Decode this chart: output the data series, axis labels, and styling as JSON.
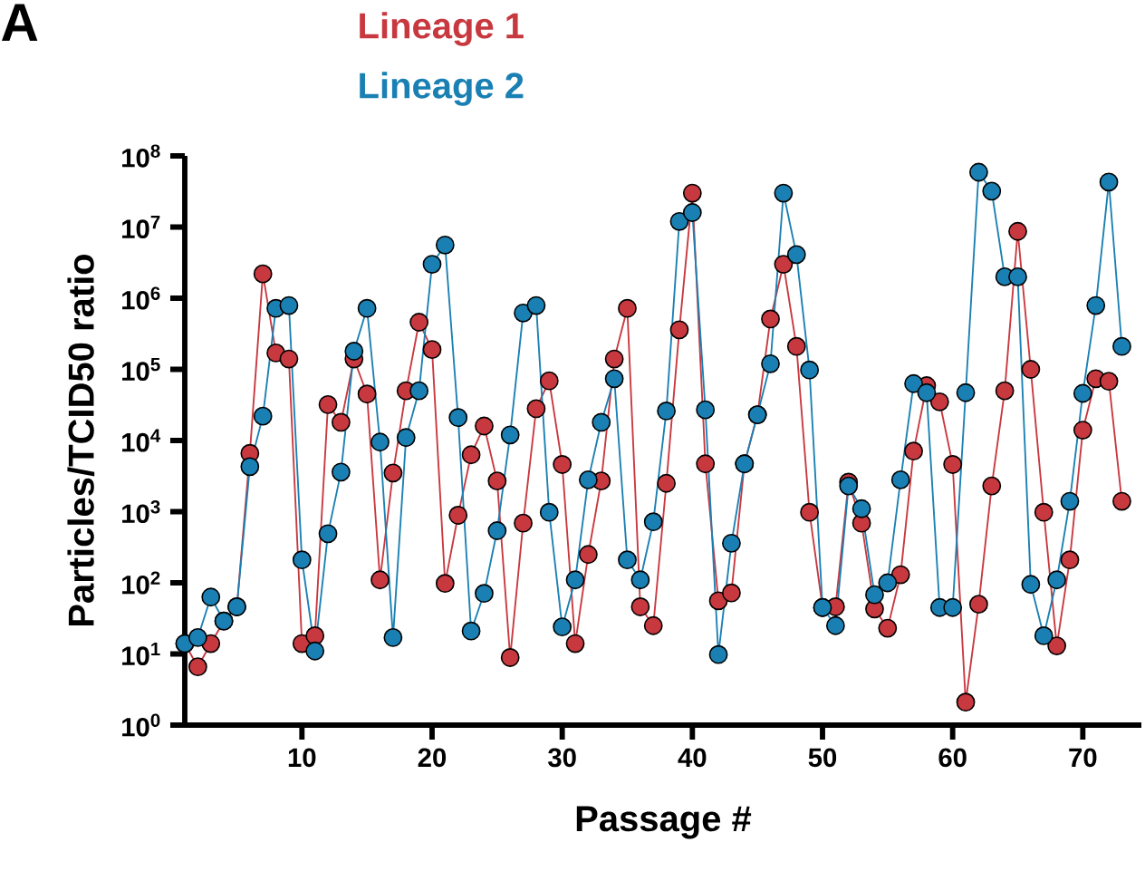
{
  "chart_data": {
    "type": "line",
    "xlabel": "Passage #",
    "ylabel": "Particles/TCID50 ratio",
    "annotations": [
      "A"
    ],
    "log": "y",
    "legend": "top left",
    "marker": "circle",
    "line_style": "solid",
    "xlim": [
      1,
      74.5
    ],
    "xticks": [
      10,
      20,
      30,
      40,
      50,
      60,
      70
    ],
    "ylim": [
      1,
      100000000
    ],
    "yticks": [
      {
        "value": 1,
        "label": "10$^{0}$"
      },
      {
        "value": 10,
        "label": "10$^{1}$"
      },
      {
        "value": 100,
        "label": "10$^{2}$"
      },
      {
        "value": 1000,
        "label": "10$^{3}$"
      },
      {
        "value": 10000,
        "label": "10$^{4}$"
      },
      {
        "value": 100000,
        "label": "10$^{5}$"
      },
      {
        "value": 1000000,
        "label": "10$^{6}$"
      },
      {
        "value": 10000000,
        "label": "10$^{7}$"
      },
      {
        "value": 100000000,
        "label": "10$^{8}$"
      }
    ],
    "x": [
      1,
      2,
      3,
      4,
      5,
      6,
      7,
      8,
      9,
      10,
      11,
      12,
      13,
      14,
      15,
      16,
      17,
      18,
      19,
      20,
      21,
      22,
      23,
      24,
      25,
      26,
      27,
      28,
      29,
      30,
      31,
      32,
      33,
      34,
      35,
      36,
      37,
      38,
      39,
      40,
      41,
      42,
      43,
      44,
      45,
      46,
      47,
      48,
      49,
      50,
      51,
      52,
      53,
      54,
      55,
      56,
      57,
      58,
      59,
      60,
      61,
      62,
      63,
      64,
      65,
      66,
      67,
      68,
      69,
      70,
      71,
      72,
      73
    ],
    "series": [
      {
        "name": "Lineage 1",
        "color": "#c8383f",
        "values": [
          14,
          6.6,
          14,
          29,
          46,
          6600,
          2200000,
          170000,
          140000,
          14,
          18,
          32000,
          18000,
          140000,
          45000,
          110,
          3500,
          50000,
          460000,
          190000,
          98,
          890,
          6300,
          16000,
          2700,
          8.9,
          690,
          28000,
          69000,
          4600,
          14,
          250,
          2700,
          140000,
          720000,
          46,
          25,
          2500,
          360000,
          30000000,
          4700,
          56,
          72,
          4700,
          23000,
          510000,
          3000000,
          210000,
          980,
          45,
          46,
          2600,
          690,
          43,
          23,
          130,
          7100,
          59000,
          35000,
          4600,
          2.1,
          50,
          2300,
          50000,
          8700000,
          100000,
          980,
          13,
          210,
          14000,
          74000,
          68000,
          1400
        ]
      },
      {
        "name": "Lineage 2",
        "color": "#1a80b3",
        "values": [
          14,
          17,
          63,
          29,
          46,
          4300,
          22000,
          720000,
          790000,
          210,
          11,
          490,
          3600,
          180000,
          720000,
          9500,
          17,
          11000,
          50000,
          3000000,
          5600000,
          21000,
          21,
          71,
          540,
          12000,
          620000,
          790000,
          980,
          24,
          110,
          2800,
          18000,
          74000,
          210,
          110,
          720,
          26000,
          12000000,
          16000000,
          27000,
          9.8,
          360,
          4700,
          23000,
          120000,
          30000000,
          4100000,
          98000,
          45,
          25,
          2300,
          1100,
          68,
          100,
          2800,
          63000,
          47000,
          45,
          45,
          47000,
          59000000,
          32000000,
          2000000,
          2000000,
          95,
          18,
          110,
          1400,
          46000,
          790000,
          43000000,
          210000
        ]
      }
    ]
  }
}
